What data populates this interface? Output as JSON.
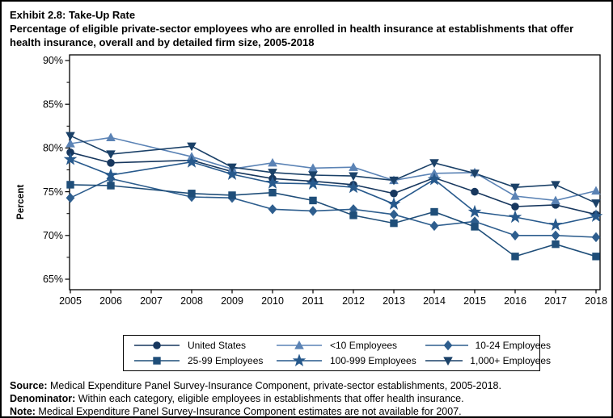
{
  "header": {
    "exhibit_title": "Exhibit 2.8: Take-Up Rate",
    "subtitle": "Percentage of eligible private-sector employees who are enrolled in health insurance at establishments that offer health insurance, overall and by detailed firm size, 2005-2018"
  },
  "chart_data": {
    "type": "line",
    "title": "Take-Up Rate",
    "xlabel": "",
    "ylabel": "Percent",
    "ylim": [
      65,
      90
    ],
    "yticks": [
      65,
      70,
      75,
      80,
      85,
      90
    ],
    "ytick_suffix": "%",
    "grid": false,
    "legend_position": "bottom",
    "note": "2007 estimates not available",
    "x": [
      2005,
      2006,
      2007,
      2008,
      2009,
      2010,
      2011,
      2012,
      2013,
      2014,
      2015,
      2016,
      2017,
      2018
    ],
    "series": [
      {
        "name": "United States",
        "marker": "circle",
        "color": "#17375E",
        "values": [
          79.5,
          78.3,
          null,
          78.6,
          77.3,
          76.5,
          76.2,
          75.8,
          74.8,
          76.6,
          75.0,
          73.3,
          73.5,
          72.4
        ]
      },
      {
        "name": "<10 Employees",
        "marker": "triangle-up",
        "color": "#5B83B5",
        "values": [
          80.5,
          81.2,
          null,
          79.0,
          77.6,
          78.3,
          77.7,
          77.8,
          76.3,
          77.1,
          77.2,
          74.5,
          74.0,
          75.1
        ]
      },
      {
        "name": "10-24 Employees",
        "marker": "diamond",
        "color": "#2E5E8E",
        "values": [
          74.3,
          76.5,
          null,
          74.4,
          74.3,
          73.0,
          72.8,
          73.0,
          72.4,
          71.1,
          71.6,
          70.0,
          70.0,
          69.8
        ]
      },
      {
        "name": "25-99 Employees",
        "marker": "square",
        "color": "#1F4E79",
        "values": [
          75.8,
          75.7,
          null,
          74.8,
          74.6,
          74.9,
          74.0,
          72.3,
          71.4,
          72.7,
          71.0,
          67.6,
          69.0,
          67.6
        ]
      },
      {
        "name": "100-999 Employees",
        "marker": "star",
        "color": "#27598C",
        "values": [
          78.7,
          76.9,
          null,
          78.4,
          77.0,
          76.0,
          75.9,
          75.5,
          73.6,
          76.4,
          72.7,
          72.1,
          71.2,
          72.2
        ]
      },
      {
        "name": "1,000+ Employees",
        "marker": "triangle-down",
        "color": "#1B4168",
        "values": [
          81.4,
          79.3,
          null,
          80.2,
          77.8,
          77.2,
          76.9,
          76.8,
          76.3,
          78.3,
          77.1,
          75.5,
          75.8,
          73.7
        ]
      }
    ]
  },
  "footer": {
    "lines": [
      {
        "label": "Source:",
        "text": " Medical Expenditure Panel Survey-Insurance Component, private-sector establishments, 2005-2018."
      },
      {
        "label": "Denominator:",
        "text": " Within each category, eligible employees in establishments that offer health insurance."
      },
      {
        "label": "Note:",
        "text": " Medical Expenditure Panel Survey-Insurance Component estimates are not available for 2007."
      }
    ]
  }
}
